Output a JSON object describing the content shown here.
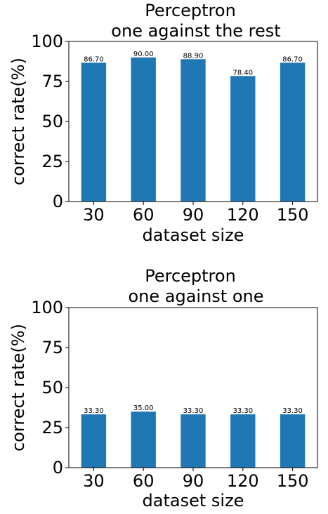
{
  "chart_data": [
    {
      "type": "bar",
      "title": [
        "Perceptron",
        "one against the rest"
      ],
      "xlabel": "dataset size",
      "ylabel": "correct rate(%)",
      "categories": [
        "30",
        "60",
        "90",
        "120",
        "150"
      ],
      "values": [
        86.7,
        90.0,
        88.9,
        78.4,
        86.7
      ],
      "value_labels": [
        "86.70",
        "90.00",
        "88.90",
        "78.40",
        "86.70"
      ],
      "ylim": [
        0,
        100
      ],
      "yticks": [
        0,
        25,
        50,
        75,
        100
      ],
      "bar_color": "#1f77b4",
      "grid": false,
      "legend": "none"
    },
    {
      "type": "bar",
      "title": [
        "Perceptron",
        "one against one"
      ],
      "xlabel": "dataset size",
      "ylabel": "correct rate(%)",
      "categories": [
        "30",
        "60",
        "90",
        "120",
        "150"
      ],
      "values": [
        33.3,
        35.0,
        33.3,
        33.3,
        33.3
      ],
      "value_labels": [
        "33.30",
        "35.00",
        "33.30",
        "33.30",
        "33.30"
      ],
      "ylim": [
        0,
        100
      ],
      "yticks": [
        0,
        25,
        50,
        75,
        100
      ],
      "bar_color": "#1f77b4",
      "grid": false,
      "legend": "none"
    }
  ]
}
